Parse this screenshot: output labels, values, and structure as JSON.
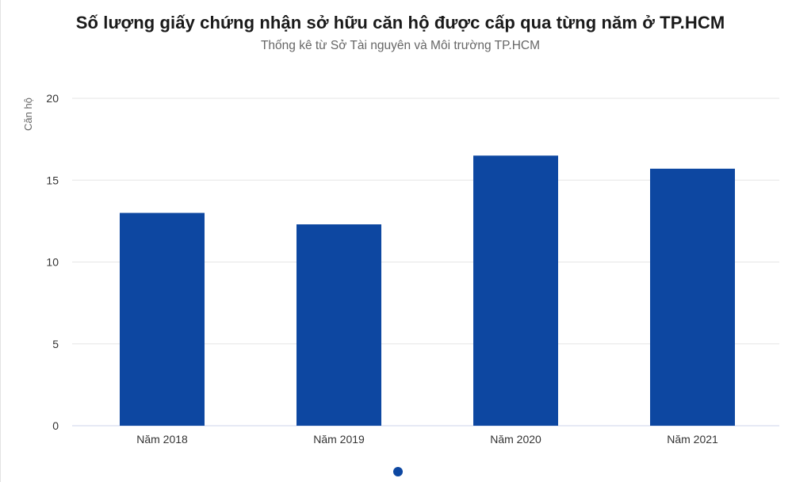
{
  "title": "Số lượng giấy chứng nhận sở hữu căn hộ được cấp qua từng năm ở TP.HCM",
  "subtitle": "Thống kê từ Sở Tài nguyên và Môi trường TP.HCM",
  "colors": {
    "bar": "#0d47a1",
    "grid": "#e6e6e6",
    "axis": "#ccd6eb"
  },
  "chart_data": {
    "type": "bar",
    "categories": [
      "Năm 2018",
      "Năm 2019",
      "Năm 2020",
      "Năm 2021"
    ],
    "values": [
      13,
      12.3,
      16.5,
      15.7
    ],
    "ylabel": "Căn hộ",
    "xlabel": "",
    "ylim": [
      0,
      20
    ],
    "yticks": [
      0,
      5,
      10,
      15,
      20
    ],
    "grid": true,
    "legend": "none"
  }
}
